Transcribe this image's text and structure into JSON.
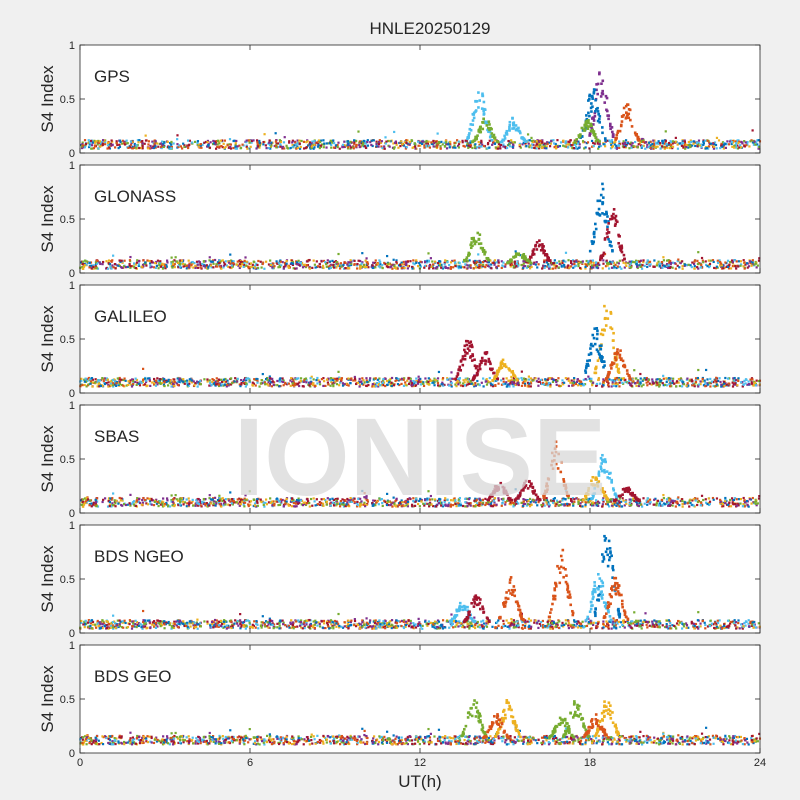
{
  "figure": {
    "title": "HNLE20250129",
    "watermark": "IONISE",
    "xlabel": "UT(h)",
    "xticks": [
      0,
      6,
      12,
      18,
      24
    ],
    "xlim": [
      0,
      24
    ]
  },
  "colors": {
    "background": "#f0f0f0",
    "axes_bg": "#ffffff",
    "axis": "#262626",
    "watermark": "#d9d9d9",
    "series": [
      "#0072BD",
      "#D95319",
      "#EDB120",
      "#7E2F8E",
      "#77AC30",
      "#4DBEEE",
      "#A2142F"
    ]
  },
  "chart_data": [
    {
      "type": "scatter",
      "label": "GPS",
      "ylabel": "S4 Index",
      "ylim": [
        0,
        1
      ],
      "yticks": [
        0,
        0.5,
        1
      ],
      "baseline": 0.08,
      "events": [
        {
          "x": 14.1,
          "peak": 0.6,
          "color": 5
        },
        {
          "x": 14.3,
          "peak": 0.32,
          "color": 4
        },
        {
          "x": 15.3,
          "peak": 0.32,
          "color": 5
        },
        {
          "x": 18.4,
          "peak": 0.82,
          "color": 3
        },
        {
          "x": 18.1,
          "peak": 0.6,
          "color": 0
        },
        {
          "x": 19.3,
          "peak": 0.45,
          "color": 1
        },
        {
          "x": 17.9,
          "peak": 0.3,
          "color": 4
        }
      ]
    },
    {
      "type": "scatter",
      "label": "GLONASS",
      "ylabel": "S4 Index",
      "ylim": [
        0,
        1
      ],
      "yticks": [
        0,
        0.5,
        1
      ],
      "baseline": 0.08,
      "events": [
        {
          "x": 18.4,
          "peak": 0.85,
          "color": 0
        },
        {
          "x": 18.8,
          "peak": 0.6,
          "color": 6
        },
        {
          "x": 14.0,
          "peak": 0.4,
          "color": 4
        },
        {
          "x": 16.2,
          "peak": 0.3,
          "color": 6
        },
        {
          "x": 15.5,
          "peak": 0.2,
          "color": 4
        }
      ]
    },
    {
      "type": "scatter",
      "label": "GALILEO",
      "ylabel": "S4 Index",
      "ylim": [
        0,
        1
      ],
      "yticks": [
        0,
        0.5,
        1
      ],
      "baseline": 0.1,
      "events": [
        {
          "x": 18.6,
          "peak": 0.88,
          "color": 2
        },
        {
          "x": 18.2,
          "peak": 0.6,
          "color": 0
        },
        {
          "x": 19.0,
          "peak": 0.45,
          "color": 1
        },
        {
          "x": 13.7,
          "peak": 0.5,
          "color": 6
        },
        {
          "x": 14.3,
          "peak": 0.38,
          "color": 6
        },
        {
          "x": 15.0,
          "peak": 0.33,
          "color": 2
        }
      ]
    },
    {
      "type": "scatter",
      "label": "SBAS",
      "ylabel": "S4 Index",
      "ylim": [
        0,
        1
      ],
      "yticks": [
        0,
        0.5,
        1
      ],
      "baseline": 0.1,
      "events": [
        {
          "x": 16.8,
          "peak": 0.65,
          "color": 1
        },
        {
          "x": 18.5,
          "peak": 0.55,
          "color": 5
        },
        {
          "x": 18.2,
          "peak": 0.35,
          "color": 2
        },
        {
          "x": 14.8,
          "peak": 0.28,
          "color": 6
        },
        {
          "x": 15.8,
          "peak": 0.3,
          "color": 6
        },
        {
          "x": 19.3,
          "peak": 0.25,
          "color": 6
        }
      ]
    },
    {
      "type": "scatter",
      "label": "BDS NGEO",
      "ylabel": "S4 Index",
      "ylim": [
        0,
        1
      ],
      "yticks": [
        0,
        0.5,
        1
      ],
      "baseline": 0.08,
      "events": [
        {
          "x": 18.6,
          "peak": 0.95,
          "color": 0
        },
        {
          "x": 17.0,
          "peak": 0.75,
          "color": 1
        },
        {
          "x": 18.3,
          "peak": 0.55,
          "color": 5
        },
        {
          "x": 15.2,
          "peak": 0.5,
          "color": 1
        },
        {
          "x": 13.5,
          "peak": 0.3,
          "color": 5
        },
        {
          "x": 14.0,
          "peak": 0.35,
          "color": 6
        },
        {
          "x": 18.9,
          "peak": 0.5,
          "color": 1
        }
      ]
    },
    {
      "type": "scatter",
      "label": "BDS GEO",
      "ylabel": "S4 Index",
      "ylim": [
        0,
        1
      ],
      "yticks": [
        0,
        0.5,
        1
      ],
      "baseline": 0.12,
      "events": [
        {
          "x": 13.9,
          "peak": 0.5,
          "color": 4
        },
        {
          "x": 15.1,
          "peak": 0.48,
          "color": 2
        },
        {
          "x": 14.7,
          "peak": 0.35,
          "color": 1
        },
        {
          "x": 17.0,
          "peak": 0.35,
          "color": 4
        },
        {
          "x": 17.5,
          "peak": 0.5,
          "color": 4
        },
        {
          "x": 18.6,
          "peak": 0.5,
          "color": 2
        },
        {
          "x": 18.2,
          "peak": 0.35,
          "color": 1
        }
      ]
    }
  ]
}
